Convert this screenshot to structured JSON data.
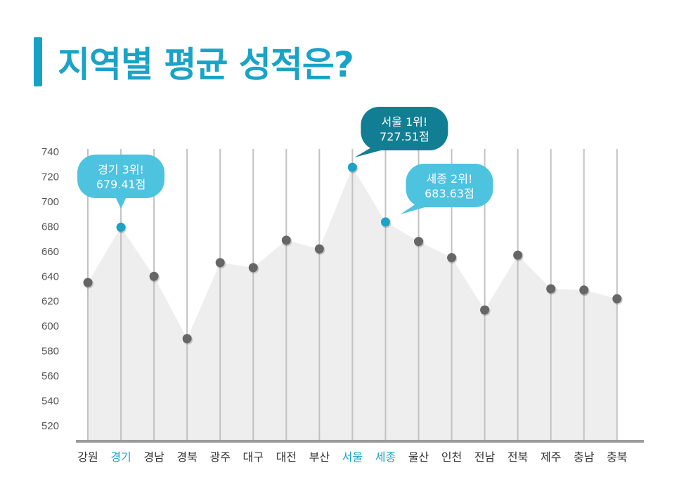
{
  "title": "지역별 평균 성적은?",
  "colors": {
    "accent": "#1aa3c6",
    "bubble_light": "#4dc3e0",
    "bubble_dark": "#127e93",
    "point": "#666666",
    "area": "#eeeeee"
  },
  "chart_data": {
    "type": "area",
    "title": "지역별 평균 성적은?",
    "categories": [
      "강원",
      "경기",
      "경남",
      "경북",
      "광주",
      "대구",
      "대전",
      "부산",
      "서울",
      "세종",
      "울산",
      "인천",
      "전남",
      "전북",
      "제주",
      "충남",
      "충북"
    ],
    "values": [
      635,
      679.41,
      640,
      590,
      651,
      647,
      669,
      662,
      727.51,
      683.63,
      668,
      655,
      613,
      657,
      630,
      629,
      622
    ],
    "highlighted": [
      "경기",
      "서울",
      "세종"
    ],
    "yticks": [
      520,
      540,
      560,
      580,
      600,
      620,
      640,
      660,
      680,
      700,
      720,
      740
    ],
    "ylim": [
      510,
      740
    ],
    "annotations": [
      {
        "category": "경기",
        "line1": "경기 3위!",
        "line2": "679.41점",
        "style": "light"
      },
      {
        "category": "서울",
        "line1": "서울 1위!",
        "line2": "727.51점",
        "style": "dark"
      },
      {
        "category": "세종",
        "line1": "세종 2위!",
        "line2": "683.63점",
        "style": "light"
      }
    ]
  }
}
